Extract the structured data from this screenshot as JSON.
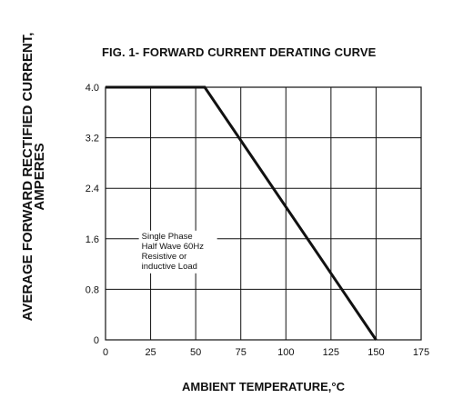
{
  "chart_data": {
    "type": "line",
    "title": "FIG. 1- FORWARD CURRENT DERATING CURVE",
    "xlabel": "AMBIENT TEMPERATURE,°C",
    "ylabel_line1": "AVERAGE FORWARD RECTIFIED CURRENT,",
    "ylabel_line2": "AMPERES",
    "xlim": [
      0,
      175
    ],
    "ylim": [
      0,
      4.0
    ],
    "x_ticks": [
      0,
      25,
      50,
      75,
      100,
      125,
      150,
      175
    ],
    "x_tick_labels": [
      "0",
      "25",
      "50",
      "75",
      "100",
      "125",
      "150",
      "175"
    ],
    "y_ticks": [
      0,
      0.8,
      1.6,
      2.4,
      3.2,
      4.0
    ],
    "y_tick_labels": [
      "0",
      "0.8",
      "1.6",
      "2.4",
      "3.2",
      "4.0"
    ],
    "grid": true,
    "series": [
      {
        "x": [
          0,
          55,
          150
        ],
        "y": [
          4.0,
          4.0,
          0
        ]
      }
    ],
    "annotation": {
      "x": 20,
      "y": 1.6,
      "lines": [
        "Single Phase",
        "Half Wave 60Hz",
        "Resistive or",
        "inductive Load"
      ]
    }
  }
}
